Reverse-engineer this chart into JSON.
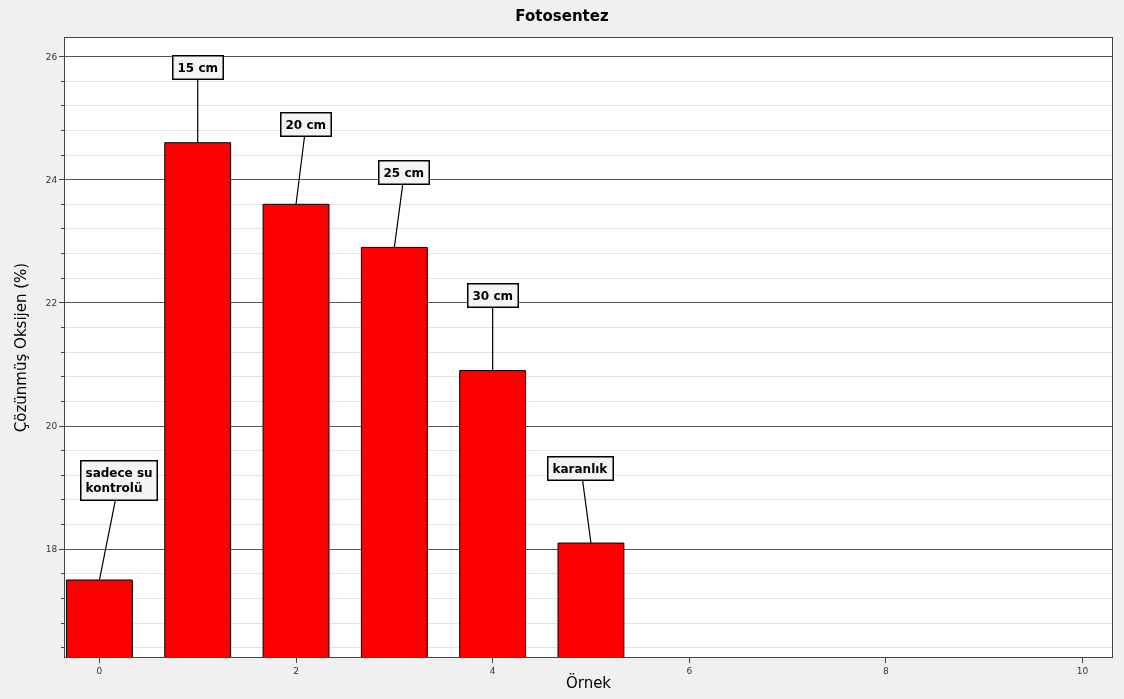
{
  "chart_data": {
    "type": "bar",
    "title": "Fotosentez",
    "xlabel": "Örnek",
    "ylabel": "Çözünmüş Oksijen (%)",
    "x": [
      0,
      1,
      2,
      3,
      4,
      5
    ],
    "values": [
      17.5,
      24.6,
      23.6,
      22.9,
      20.9,
      18.1
    ],
    "color": "#ff0000",
    "xlim": [
      -0.35,
      10.3
    ],
    "xticks": [
      0,
      2,
      4,
      6,
      8,
      10
    ],
    "ylim": [
      16.25,
      26.3
    ],
    "yticks": [
      18,
      20,
      22,
      24,
      26
    ],
    "grid": "y",
    "annotations": [
      {
        "text": "sadece su\nkontrolü",
        "x": 0,
        "y": 17.5
      },
      {
        "text": "15 cm",
        "x": 1,
        "y": 24.6
      },
      {
        "text": "20 cm",
        "x": 2,
        "y": 23.6
      },
      {
        "text": "25 cm",
        "x": 3,
        "y": 22.9
      },
      {
        "text": "30 cm",
        "x": 4,
        "y": 20.9
      },
      {
        "text": "karanlık",
        "x": 5,
        "y": 18.1
      }
    ]
  }
}
